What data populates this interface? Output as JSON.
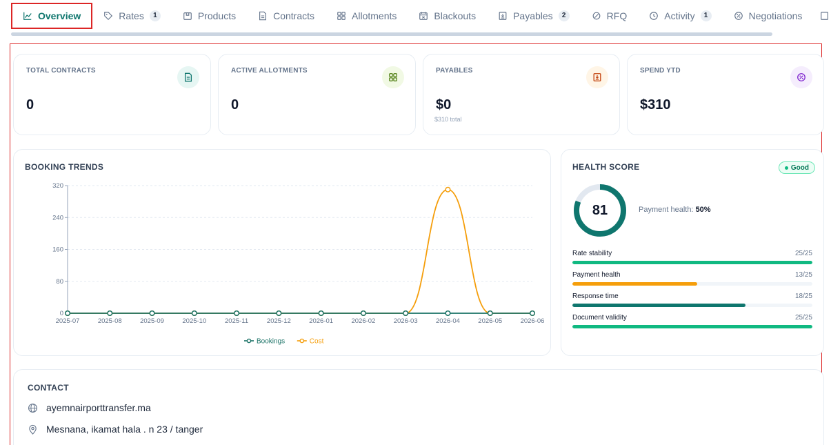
{
  "tabs": [
    {
      "label": "Overview",
      "icon": "chart-line-icon",
      "badge": null,
      "active": true
    },
    {
      "label": "Rates",
      "icon": "tag-icon",
      "badge": "1"
    },
    {
      "label": "Products",
      "icon": "package-icon",
      "badge": null
    },
    {
      "label": "Contracts",
      "icon": "document-icon",
      "badge": null
    },
    {
      "label": "Allotments",
      "icon": "grid-icon",
      "badge": null
    },
    {
      "label": "Blackouts",
      "icon": "calendar-icon",
      "badge": null
    },
    {
      "label": "Payables",
      "icon": "receipt-icon",
      "badge": "2"
    },
    {
      "label": "RFQ",
      "icon": "megaphone-icon",
      "badge": null
    },
    {
      "label": "Activity",
      "icon": "clock-icon",
      "badge": "1"
    },
    {
      "label": "Negotiations",
      "icon": "percent-icon",
      "badge": null
    }
  ],
  "stats": [
    {
      "label": "TOTAL CONTRACTS",
      "value": "0",
      "sub": "",
      "icon": "document-icon",
      "color": "#0f766e",
      "bg": "#e6f6f3"
    },
    {
      "label": "ACTIVE ALLOTMENTS",
      "value": "0",
      "sub": "",
      "icon": "grid-icon",
      "color": "#4d7c0f",
      "bg": "#f1f9e4"
    },
    {
      "label": "PAYABLES",
      "value": "$0",
      "sub": "$310 total",
      "icon": "receipt-icon",
      "color": "#c2410c",
      "bg": "#fff5e6"
    },
    {
      "label": "SPEND YTD",
      "value": "$310",
      "sub": "",
      "icon": "percent-icon",
      "color": "#7e22ce",
      "bg": "#f5edfd"
    }
  ],
  "booking_trends": {
    "title": "BOOKING TRENDS",
    "chart_data": {
      "type": "line",
      "x": [
        "2025-07",
        "2025-08",
        "2025-09",
        "2025-10",
        "2025-11",
        "2025-12",
        "2026-01",
        "2026-02",
        "2026-03",
        "2026-04",
        "2026-05",
        "2026-06"
      ],
      "series": [
        {
          "name": "Bookings",
          "color": "#1a7266",
          "values": [
            0,
            0,
            0,
            0,
            0,
            0,
            0,
            0,
            0,
            0,
            0,
            0
          ]
        },
        {
          "name": "Cost",
          "color": "#f59e0b",
          "values": [
            0,
            0,
            0,
            0,
            0,
            0,
            0,
            0,
            0,
            310,
            0,
            0
          ]
        }
      ],
      "yticks": [
        0,
        80,
        160,
        240,
        320
      ],
      "ylim": [
        0,
        320
      ],
      "grid": true,
      "legend_position": "bottom-center"
    }
  },
  "health": {
    "title": "HEALTH SCORE",
    "badge": "Good",
    "score": "81",
    "score_fraction": 0.81,
    "payment_label": "Payment health:",
    "payment_value": "50%",
    "metrics": [
      {
        "label": "Rate stability",
        "value": "25/25",
        "fraction": 1.0,
        "color": "#10b981"
      },
      {
        "label": "Payment health",
        "value": "13/25",
        "fraction": 0.52,
        "color": "#f59e0b"
      },
      {
        "label": "Response time",
        "value": "18/25",
        "fraction": 0.72,
        "color": "#0f766e"
      },
      {
        "label": "Document validity",
        "value": "25/25",
        "fraction": 1.0,
        "color": "#10b981"
      }
    ]
  },
  "contact": {
    "title": "CONTACT",
    "website": "ayemnairporttransfer.ma",
    "address": "Mesnana, ikamat hala . n 23 / tanger"
  }
}
